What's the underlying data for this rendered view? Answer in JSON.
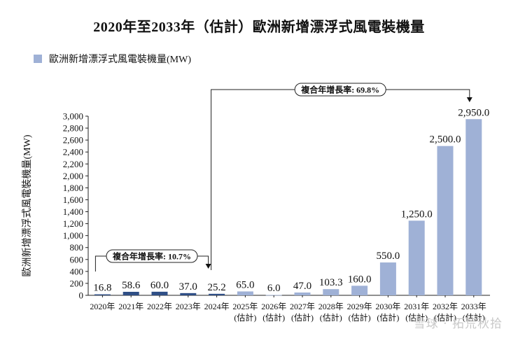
{
  "chart_data": {
    "type": "bar",
    "title": "2020年至2033年（估計）歐洲新增漂浮式風電裝機量",
    "ylabel": "歐洲新增漂浮式風電裝機量(MW)",
    "legend": [
      {
        "name": "歐洲新增漂浮式風電裝機量(MW)",
        "color": "#9fb1d6"
      }
    ],
    "legend_position": "top-left",
    "grid": false,
    "ylim": [
      0,
      3000
    ],
    "yticks": [
      "0",
      "200",
      "400",
      "600",
      "800",
      "1,000",
      "1,200",
      "1,400",
      "1,600",
      "1,800",
      "2,000",
      "2,200",
      "2,400",
      "2,600",
      "2,800",
      "3,000"
    ],
    "categories": [
      {
        "line1": "2020年",
        "line2": ""
      },
      {
        "line1": "2021年",
        "line2": ""
      },
      {
        "line1": "2022年",
        "line2": ""
      },
      {
        "line1": "2023年",
        "line2": ""
      },
      {
        "line1": "2024年",
        "line2": ""
      },
      {
        "line1": "2025年",
        "line2": "(估計)"
      },
      {
        "line1": "2026年",
        "line2": "(估計)"
      },
      {
        "line1": "2027年",
        "line2": "(估計)"
      },
      {
        "line1": "2028年",
        "line2": "(估計)"
      },
      {
        "line1": "2029年",
        "line2": "(估計)"
      },
      {
        "line1": "2030年",
        "line2": "(估計)"
      },
      {
        "line1": "2031年",
        "line2": "(估計)"
      },
      {
        "line1": "2032年",
        "line2": "(估計)"
      },
      {
        "line1": "2033年",
        "line2": "(估計)"
      }
    ],
    "values": [
      16.8,
      58.6,
      60.0,
      37.0,
      25.2,
      65.0,
      6.0,
      47.0,
      103.3,
      160.0,
      550.0,
      1250.0,
      2500.0,
      2950.0
    ],
    "data_labels": [
      "16.8",
      "58.6",
      "60.0",
      "37.0",
      "25.2",
      "65.0",
      "6.0",
      "47.0",
      "103.3",
      "160.0",
      "550.0",
      "1,250.0",
      "2,500.0",
      "2,950.0"
    ],
    "bar_colors": {
      "actual": "#2f4f86",
      "estimate": "#9fb1d6"
    },
    "actual_count": 5,
    "annotations": [
      {
        "text": "複合年增長率: 10.7%",
        "from_index": 0,
        "to_index": 4
      },
      {
        "text": "複合年增長率: 69.8%",
        "from_index": 4,
        "to_index": 13
      }
    ]
  },
  "watermark": "雪球 · 拓荒秋拾"
}
